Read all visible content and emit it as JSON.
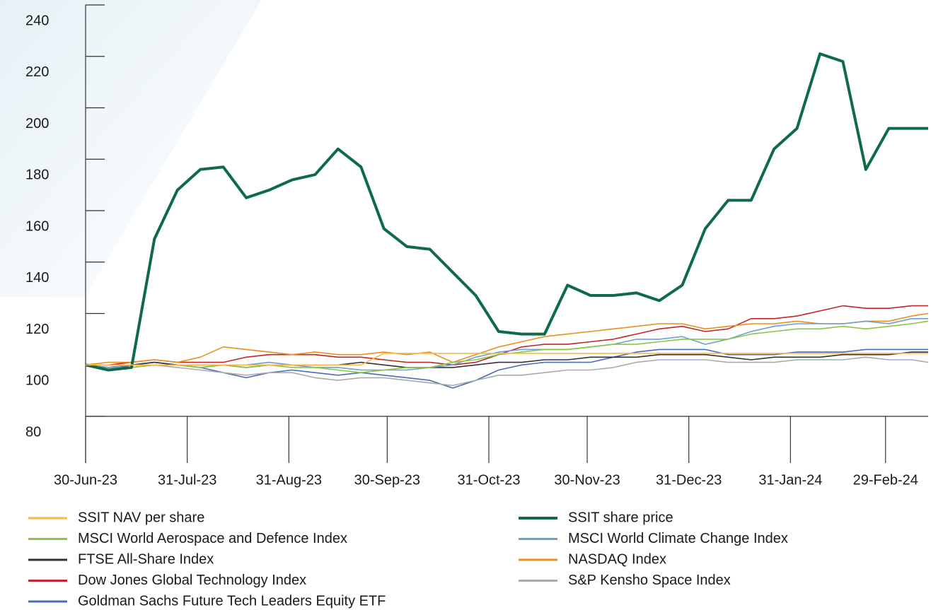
{
  "chart_data": {
    "type": "line",
    "x": [
      "2023-06-30",
      "2023-07-07",
      "2023-07-14",
      "2023-07-21",
      "2023-07-28",
      "2023-08-04",
      "2023-08-11",
      "2023-08-18",
      "2023-08-25",
      "2023-09-01",
      "2023-09-08",
      "2023-09-15",
      "2023-09-22",
      "2023-09-29",
      "2023-10-06",
      "2023-10-13",
      "2023-10-20",
      "2023-10-27",
      "2023-11-03",
      "2023-11-10",
      "2023-11-17",
      "2023-11-24",
      "2023-12-01",
      "2023-12-08",
      "2023-12-15",
      "2023-12-22",
      "2023-12-29",
      "2024-01-05",
      "2024-01-12",
      "2024-01-19",
      "2024-01-26",
      "2024-02-02",
      "2024-02-09",
      "2024-02-16",
      "2024-02-23",
      "2024-03-01",
      "2024-03-08",
      "2024-03-13"
    ],
    "xlim": [
      "2023-06-30",
      "2024-03-13"
    ],
    "xticks": [
      {
        "value": "2023-06-30",
        "label": "30-Jun-23"
      },
      {
        "value": "2023-07-31",
        "label": "31-Jul-23"
      },
      {
        "value": "2023-08-31",
        "label": "31-Aug-23"
      },
      {
        "value": "2023-09-30",
        "label": "30-Sep-23"
      },
      {
        "value": "2023-10-31",
        "label": "31-Oct-23"
      },
      {
        "value": "2023-11-30",
        "label": "30-Nov-23"
      },
      {
        "value": "2023-12-31",
        "label": "31-Dec-23"
      },
      {
        "value": "2024-01-31",
        "label": "31-Jan-24"
      },
      {
        "value": "2024-02-29",
        "label": "29-Feb-24"
      }
    ],
    "ylim": [
      80,
      240
    ],
    "yticks": [
      80,
      100,
      120,
      140,
      160,
      180,
      200,
      220,
      240
    ],
    "series": [
      {
        "name": "SSIT NAV per share",
        "color": "#f7b84b",
        "values": [
          100,
          100,
          100,
          100,
          100,
          100,
          100,
          100,
          100,
          100,
          100,
          100,
          100,
          104.5,
          104.5,
          104.5,
          104.5,
          104.5,
          104.5,
          104.5,
          104.5,
          104.5,
          104.5,
          104.5,
          104.5,
          104.5,
          104.5,
          104.5,
          104.5,
          104.5,
          104.5,
          104.5,
          104.5,
          104.5,
          104.5,
          104.5,
          104.5,
          104.5
        ]
      },
      {
        "name": "SSIT share price",
        "color": "#0e6b45",
        "values": [
          100,
          98,
          99,
          149,
          168,
          176,
          177,
          165,
          168,
          172,
          174,
          184,
          177,
          153,
          146,
          145,
          136,
          127,
          113,
          112,
          112,
          131,
          127,
          127,
          128,
          125,
          131,
          153,
          164,
          164,
          184,
          192,
          221,
          218,
          176,
          192,
          192,
          192
        ]
      },
      {
        "name": "MSCI World Aerospace and Defence Index",
        "color": "#8dc63f",
        "values": [
          100,
          98,
          99,
          100,
          100,
          99,
          100,
          99,
          100,
          99,
          99,
          98,
          97,
          98,
          99,
          99,
          101,
          102,
          104,
          105,
          106,
          106,
          107,
          108,
          108,
          109,
          110,
          110,
          110,
          112,
          113,
          114,
          114,
          115,
          114,
          115,
          116,
          117
        ]
      },
      {
        "name": "MSCI World Climate Change Index",
        "color": "#6a9fd8",
        "values": [
          100,
          99,
          100,
          100,
          100,
          99,
          100,
          100,
          101,
          100,
          99,
          99,
          98,
          98,
          98,
          99,
          100,
          103,
          105,
          106,
          106,
          106,
          107,
          108,
          110,
          110,
          111,
          108,
          110,
          113,
          115,
          116,
          116,
          116,
          117,
          116,
          118,
          118
        ]
      },
      {
        "name": "FTSE All-Share Index",
        "color": "#333333",
        "values": [
          100,
          99,
          100,
          101,
          100,
          100,
          100,
          99,
          100,
          100,
          100,
          100,
          101,
          100,
          99,
          99,
          99,
          100,
          101,
          101,
          102,
          102,
          103,
          103,
          103,
          104,
          104,
          104,
          103,
          102,
          103,
          103,
          103,
          104,
          104,
          104,
          105,
          105
        ]
      },
      {
        "name": "NASDAQ Index",
        "color": "#e8901e",
        "values": [
          100,
          101,
          101,
          102,
          101,
          103,
          107,
          106,
          105,
          104,
          105,
          104,
          104,
          105,
          104,
          105,
          101,
          104,
          107,
          109,
          111,
          112,
          113,
          114,
          115,
          116,
          116,
          114,
          115,
          116,
          116,
          117,
          116,
          116,
          117,
          117,
          119,
          120
        ]
      },
      {
        "name": "Dow Jones Global Technology Index",
        "color": "#c0272d",
        "values": [
          100,
          100,
          101,
          102,
          101,
          101,
          101,
          103,
          104,
          104,
          104,
          103,
          103,
          102,
          101,
          101,
          100,
          101,
          104,
          107,
          108,
          108,
          109,
          110,
          112,
          114,
          115,
          113,
          114,
          118,
          118,
          119,
          121,
          123,
          122,
          122,
          123,
          123
        ]
      },
      {
        "name": "S&P Kensho Space Index",
        "color": "#aaaaaa",
        "values": [
          100,
          99,
          99,
          100,
          99,
          98,
          97,
          96,
          97,
          97,
          95,
          94,
          95,
          95,
          94,
          93,
          92,
          94,
          96,
          96,
          97,
          98,
          98,
          99,
          101,
          102,
          102,
          102,
          101,
          101,
          101,
          102,
          102,
          102,
          103,
          102,
          102,
          101
        ]
      },
      {
        "name": "Goldman Sachs Future Tech Leaders Equity ETF",
        "color": "#4a6db5",
        "values": [
          100,
          98,
          100,
          101,
          100,
          99,
          97,
          95,
          97,
          98,
          97,
          96,
          97,
          96,
          95,
          94,
          91,
          94,
          98,
          100,
          101,
          101,
          101,
          103,
          105,
          106,
          106,
          106,
          104,
          104,
          104,
          105,
          105,
          105,
          106,
          106,
          106,
          106
        ]
      }
    ]
  }
}
